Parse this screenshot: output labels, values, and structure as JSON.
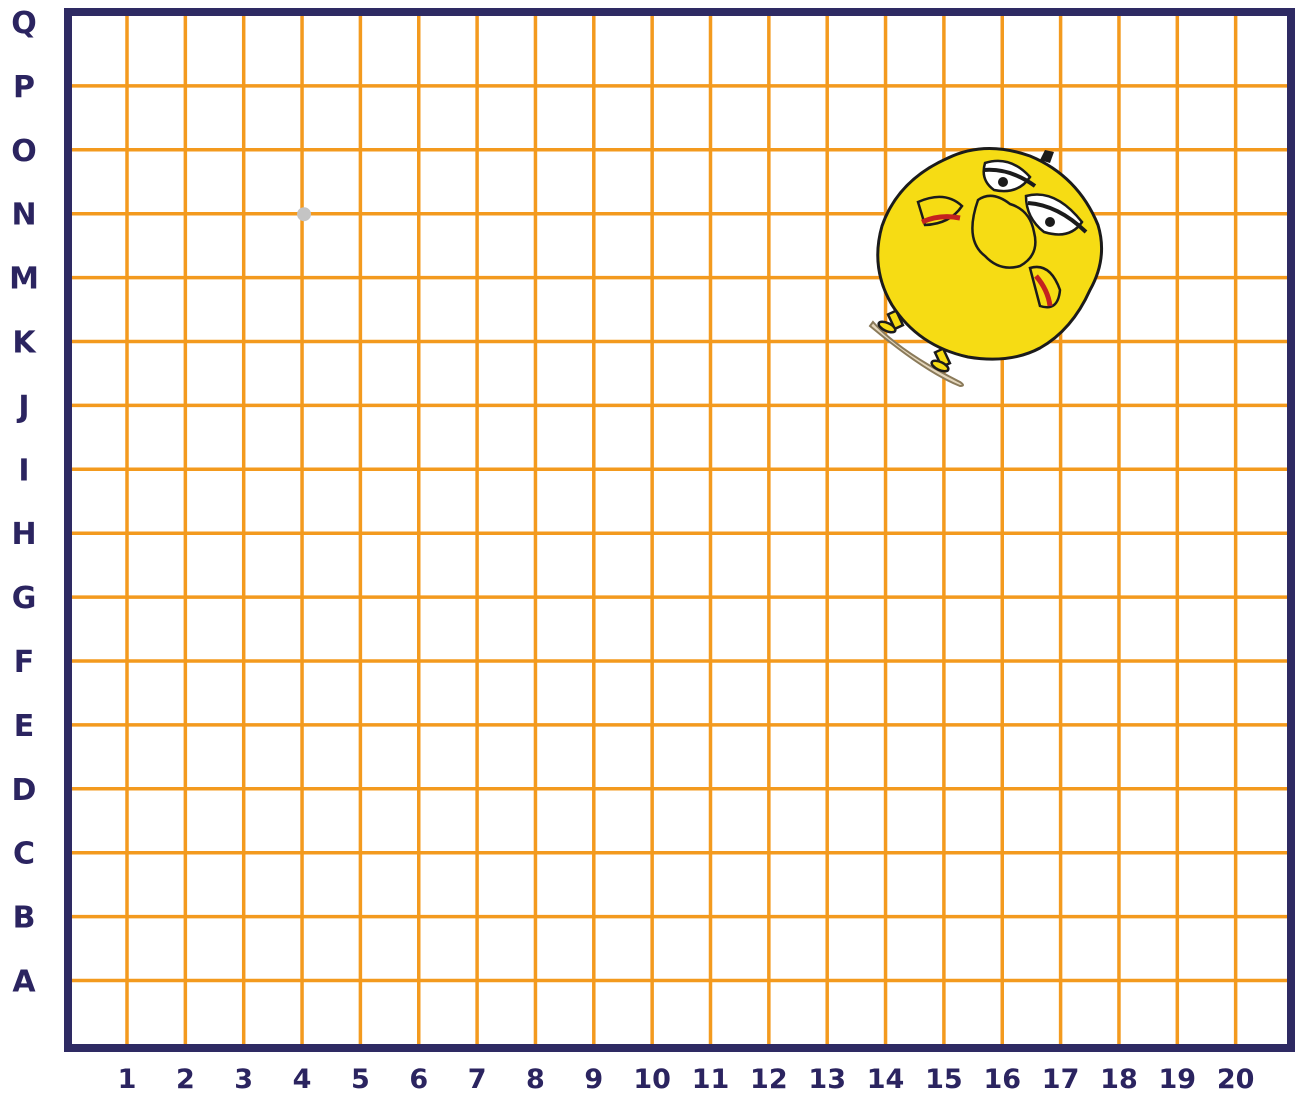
{
  "board": {
    "row_labels": [
      "Q",
      "P",
      "O",
      "N",
      "M",
      "K",
      "J",
      "I",
      "H",
      "G",
      "F",
      "E",
      "D",
      "C",
      "B",
      "A"
    ],
    "column_labels": [
      "1",
      "2",
      "3",
      "4",
      "5",
      "6",
      "7",
      "8",
      "9",
      "10",
      "11",
      "12",
      "13",
      "14",
      "15",
      "16",
      "17",
      "18",
      "19",
      "20"
    ],
    "colors": {
      "frame": "#2e2a63",
      "grid_line": "#f39a1e",
      "label": "#2b2460",
      "marker": "#c4c4c4",
      "chick_body": "#f6dc14",
      "chick_outline": "#1b1b1b",
      "chick_accent": "#c4221f"
    },
    "marker": {
      "column": "4",
      "row": "N",
      "icon": "grey-dot-marker"
    },
    "character": {
      "icon": "angry-yellow-chick-icon",
      "columns": [
        "14",
        "15",
        "16",
        "17"
      ],
      "rows": [
        "O",
        "N",
        "M",
        "K",
        "J"
      ]
    }
  }
}
